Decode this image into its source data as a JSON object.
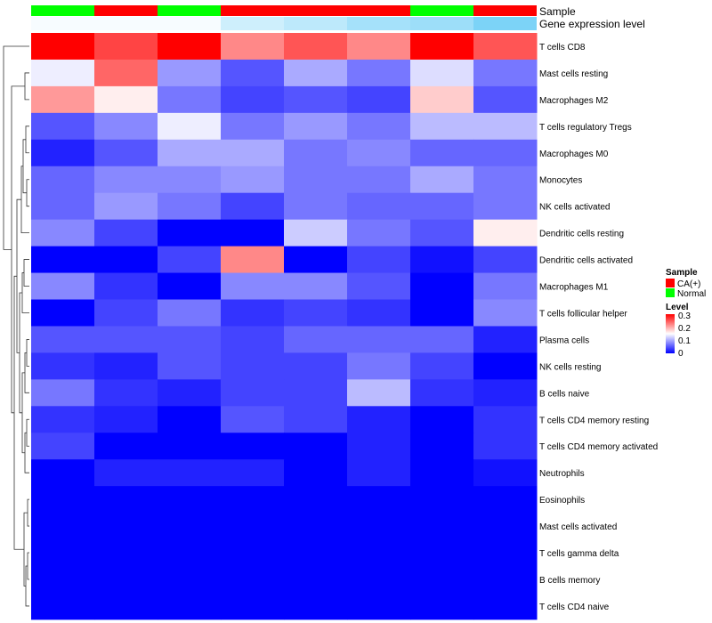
{
  "chart_data": {
    "type": "heatmap",
    "annotation_titles": [
      "Sample",
      "Gene expression level"
    ],
    "sample_annotation": [
      "Normal",
      "CA(+)",
      "Normal",
      "CA(+)",
      "CA(+)",
      "CA(+)",
      "Normal",
      "CA(+)"
    ],
    "gene_expression_annotation": [
      0.95,
      0.95,
      0.95,
      0.7,
      0.6,
      0.45,
      0.4,
      0.2
    ],
    "rows": [
      "T cells CD8",
      "Mast cells resting",
      "Macrophages M2",
      "T cells regulatory  Tregs",
      "Macrophages M0",
      "Monocytes",
      "NK cells activated",
      "Dendritic cells resting",
      "Dendritic cells activated",
      "Macrophages M1",
      "T cells follicular helper",
      "Plasma cells",
      "NK cells resting",
      "B cells naive",
      "T cells CD4 memory resting",
      "T cells CD4 memory activated",
      "Neutrophils",
      "Eosinophils",
      "Mast cells activated",
      "T cells gamma delta",
      "B cells memory",
      "T cells CD4 naive"
    ],
    "values": [
      [
        0.3,
        0.26,
        0.3,
        0.22,
        0.25,
        0.22,
        0.3,
        0.25
      ],
      [
        0.14,
        0.24,
        0.09,
        0.05,
        0.1,
        0.07,
        0.13,
        0.07
      ],
      [
        0.21,
        0.16,
        0.07,
        0.04,
        0.05,
        0.04,
        0.18,
        0.05
      ],
      [
        0.05,
        0.08,
        0.14,
        0.07,
        0.09,
        0.07,
        0.11,
        0.11
      ],
      [
        0.02,
        0.05,
        0.1,
        0.1,
        0.07,
        0.08,
        0.06,
        0.06
      ],
      [
        0.06,
        0.08,
        0.08,
        0.09,
        0.07,
        0.07,
        0.1,
        0.07
      ],
      [
        0.06,
        0.09,
        0.07,
        0.04,
        0.07,
        0.06,
        0.06,
        0.07
      ],
      [
        0.08,
        0.04,
        0.0,
        0.0,
        0.12,
        0.07,
        0.05,
        0.16
      ],
      [
        0.0,
        0.0,
        0.04,
        0.22,
        0.0,
        0.04,
        0.01,
        0.04
      ],
      [
        0.08,
        0.03,
        0.0,
        0.08,
        0.08,
        0.05,
        0.0,
        0.07
      ],
      [
        0.0,
        0.04,
        0.07,
        0.03,
        0.04,
        0.03,
        0.0,
        0.08
      ],
      [
        0.05,
        0.05,
        0.05,
        0.04,
        0.06,
        0.06,
        0.06,
        0.02
      ],
      [
        0.03,
        0.02,
        0.05,
        0.04,
        0.04,
        0.07,
        0.04,
        0.0
      ],
      [
        0.07,
        0.03,
        0.02,
        0.04,
        0.04,
        0.11,
        0.03,
        0.02
      ],
      [
        0.03,
        0.02,
        0.0,
        0.05,
        0.04,
        0.02,
        0.0,
        0.03
      ],
      [
        0.04,
        0.0,
        0.0,
        0.0,
        0.0,
        0.02,
        0.0,
        0.03
      ],
      [
        0.0,
        0.02,
        0.02,
        0.02,
        0.0,
        0.02,
        0.0,
        0.01
      ],
      [
        0.0,
        0.0,
        0.0,
        0.0,
        0.0,
        0.0,
        0.0,
        0.0
      ],
      [
        0.0,
        0.0,
        0.0,
        0.0,
        0.0,
        0.0,
        0.0,
        0.0
      ],
      [
        0.0,
        0.0,
        0.0,
        0.0,
        0.0,
        0.0,
        0.0,
        0.0
      ],
      [
        0.0,
        0.0,
        0.0,
        0.0,
        0.0,
        0.0,
        0.0,
        0.0
      ],
      [
        0.0,
        0.0,
        0.0,
        0.0,
        0.0,
        0.0,
        0.0,
        0.0
      ]
    ],
    "color_scale": {
      "low": "#0000ff",
      "mid": "#ffffff",
      "high": "#ff0000",
      "range": [
        0,
        0.3
      ]
    },
    "gene_expression_colors": {
      "low": "#5bc8f5",
      "high": "#ffffff"
    },
    "sample_colors": {
      "CA(+)": "#ff0000",
      "Normal": "#00ff00"
    },
    "legend": {
      "sample_title": "Sample",
      "sample_entries": [
        "CA(+)",
        "Normal"
      ],
      "level_title": "Level",
      "level_ticks": [
        "0.3",
        "0.2",
        "0.1",
        "0"
      ],
      "placement": "right"
    },
    "dendrogram": "rows"
  }
}
